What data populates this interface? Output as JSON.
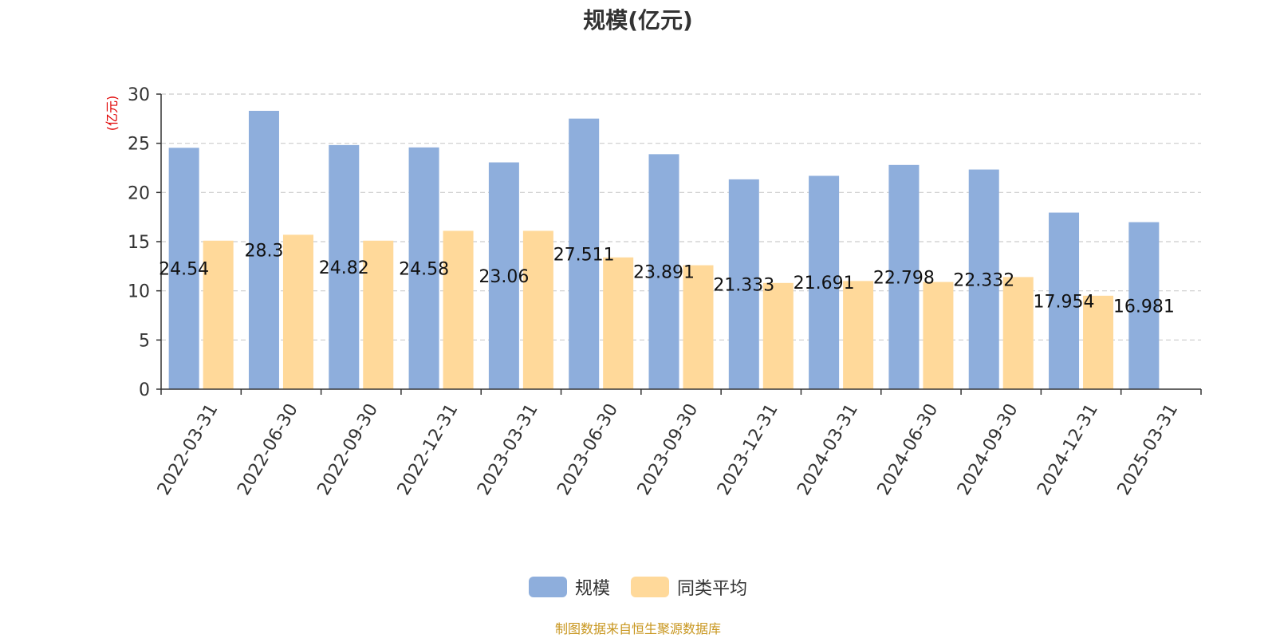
{
  "chart_data": {
    "type": "bar",
    "title": "规模(亿元)",
    "ylabel": "(亿元)",
    "ylim": [
      0,
      30
    ],
    "yticks": [
      0,
      5,
      10,
      15,
      20,
      25,
      30
    ],
    "grid": true,
    "legend_position": "bottom",
    "categories": [
      "2022-03-31",
      "2022-06-30",
      "2022-09-30",
      "2022-12-31",
      "2023-03-31",
      "2023-06-30",
      "2023-09-30",
      "2023-12-31",
      "2024-03-31",
      "2024-06-30",
      "2024-09-30",
      "2024-12-31",
      "2025-03-31"
    ],
    "series": [
      {
        "name": "规模",
        "color": "#8eaedc",
        "values": [
          24.54,
          28.3,
          24.82,
          24.58,
          23.06,
          27.511,
          23.891,
          21.333,
          21.691,
          22.798,
          22.332,
          17.954,
          16.981
        ],
        "labels": [
          "24.54",
          "28.3",
          "24.82",
          "24.58",
          "23.06",
          "27.511",
          "23.891",
          "21.333",
          "21.691",
          "22.798",
          "22.332",
          "17.954",
          "16.981"
        ]
      },
      {
        "name": "同类平均",
        "color": "#ffd99a",
        "values": [
          15.1,
          15.7,
          15.1,
          16.1,
          16.1,
          13.4,
          12.6,
          10.8,
          11.0,
          10.9,
          11.4,
          9.5,
          null
        ]
      }
    ]
  },
  "source_note": "制图数据来自恒生聚源数据库"
}
